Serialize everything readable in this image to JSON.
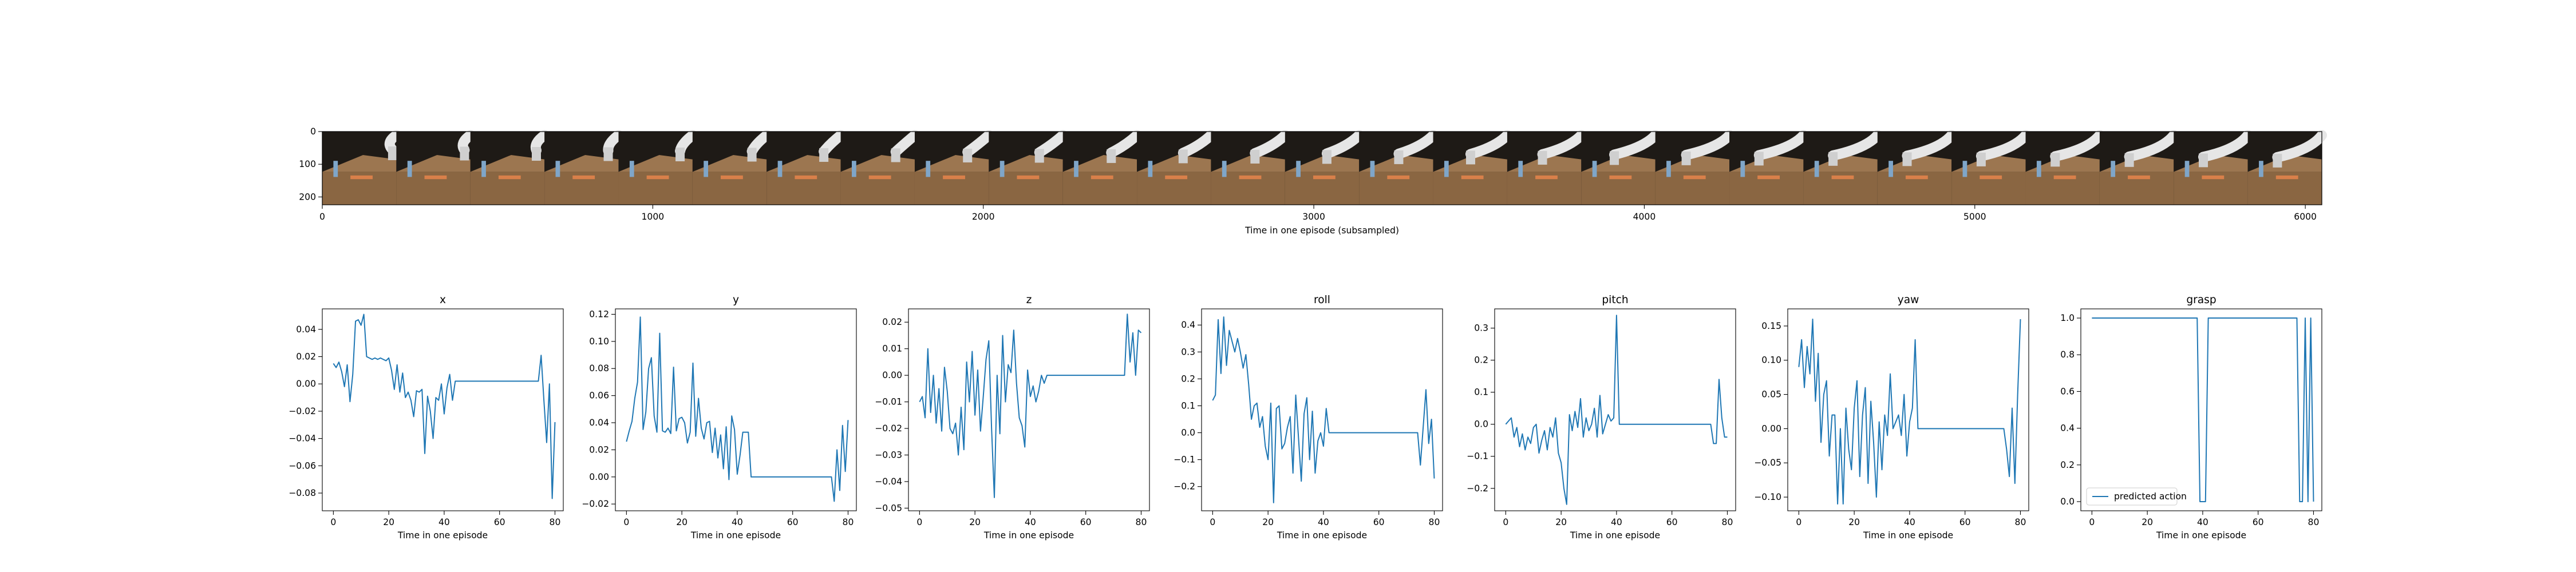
{
  "figure": {
    "filmstrip": {
      "xlabel": "Time in one episode (subsampled)",
      "x_ticks": [
        "0",
        "1000",
        "2000",
        "3000",
        "4000",
        "5000",
        "6000"
      ],
      "y_ticks": [
        "0",
        "100",
        "200"
      ],
      "frame_count": 27,
      "colors": {
        "table": "#8a6642",
        "robot": "#e6e6e6",
        "background": "#1e1a16"
      }
    }
  },
  "chart_data": [
    {
      "type": "line",
      "title": "x",
      "xlabel": "Time in one episode",
      "xlim": [
        -4,
        83
      ],
      "ylim": [
        -0.093,
        0.055
      ],
      "x_ticks": [
        0,
        20,
        40,
        60,
        80
      ],
      "y_ticks": [
        -0.08,
        -0.06,
        -0.04,
        -0.02,
        0.0,
        0.02,
        0.04
      ],
      "y_tick_labels": [
        "−0.08",
        "−0.06",
        "−0.04",
        "−0.02",
        "0.00",
        "0.02",
        "0.04"
      ],
      "line_color": "#1f77b4",
      "series": [
        {
          "values": [
            0.015,
            0.012,
            0.016,
            0.009,
            -0.002,
            0.014,
            -0.013,
            0.007,
            0.046,
            0.047,
            0.043,
            0.051,
            0.02,
            0.019,
            0.018,
            0.019,
            0.018,
            0.019,
            0.018,
            0.017,
            0.019,
            0.01,
            -0.004,
            0.014,
            -0.006,
            0.008,
            -0.01,
            -0.006,
            -0.012,
            -0.024,
            -0.005,
            -0.006,
            -0.004,
            -0.051,
            -0.009,
            -0.02,
            -0.04,
            -0.01,
            -0.012,
            0.0,
            -0.022,
            -0.003,
            0.007,
            -0.012,
            0.002,
            0.002,
            0.002,
            0.002,
            0.002,
            0.002,
            0.002,
            0.002,
            0.002,
            0.002,
            0.002,
            0.002,
            0.002,
            0.002,
            0.002,
            0.002,
            0.002,
            0.002,
            0.002,
            0.002,
            0.002,
            0.002,
            0.002,
            0.002,
            0.002,
            0.002,
            0.002,
            0.002,
            0.002,
            0.002,
            0.002,
            0.021,
            -0.012,
            -0.043,
            0.0,
            -0.084,
            -0.028
          ]
        }
      ]
    },
    {
      "type": "line",
      "title": "y",
      "xlabel": "Time in one episode",
      "xlim": [
        -4,
        83
      ],
      "ylim": [
        -0.025,
        0.124
      ],
      "x_ticks": [
        0,
        20,
        40,
        60,
        80
      ],
      "y_ticks": [
        -0.02,
        0.0,
        0.02,
        0.04,
        0.06,
        0.08,
        0.1,
        0.12
      ],
      "y_tick_labels": [
        "−0.02",
        "0.00",
        "0.02",
        "0.04",
        "0.06",
        "0.08",
        "0.10",
        "0.12"
      ],
      "line_color": "#1f77b4",
      "series": [
        {
          "values": [
            0.026,
            0.034,
            0.041,
            0.058,
            0.07,
            0.118,
            0.035,
            0.048,
            0.08,
            0.088,
            0.045,
            0.033,
            0.106,
            0.034,
            0.033,
            0.036,
            0.032,
            0.081,
            0.034,
            0.043,
            0.044,
            0.04,
            0.025,
            0.033,
            0.084,
            0.03,
            0.058,
            0.036,
            0.028,
            0.04,
            0.041,
            0.018,
            0.036,
            0.014,
            0.031,
            0.006,
            0.037,
            -0.002,
            0.045,
            0.035,
            0.002,
            0.016,
            0.033,
            0.033,
            0.033,
            0.0,
            0.0,
            0.0,
            0.0,
            0.0,
            0.0,
            0.0,
            0.0,
            0.0,
            0.0,
            0.0,
            0.0,
            0.0,
            0.0,
            0.0,
            0.0,
            0.0,
            0.0,
            0.0,
            0.0,
            0.0,
            0.0,
            0.0,
            0.0,
            0.0,
            0.0,
            0.0,
            0.0,
            0.0,
            0.0,
            -0.018,
            0.02,
            -0.01,
            0.038,
            0.004,
            0.042
          ]
        }
      ]
    },
    {
      "type": "line",
      "title": "z",
      "xlabel": "Time in one episode",
      "xlim": [
        -4,
        83
      ],
      "ylim": [
        -0.051,
        0.025
      ],
      "x_ticks": [
        0,
        20,
        40,
        60,
        80
      ],
      "y_ticks": [
        -0.05,
        -0.04,
        -0.03,
        -0.02,
        -0.01,
        0.0,
        0.01,
        0.02
      ],
      "y_tick_labels": [
        "−0.05",
        "−0.04",
        "−0.03",
        "−0.02",
        "−0.01",
        "0.00",
        "0.01",
        "0.02"
      ],
      "line_color": "#1f77b4",
      "series": [
        {
          "values": [
            -0.01,
            -0.008,
            -0.016,
            0.01,
            -0.014,
            0.0,
            -0.018,
            -0.005,
            -0.021,
            0.003,
            -0.006,
            -0.02,
            -0.022,
            -0.018,
            -0.03,
            -0.012,
            -0.028,
            0.005,
            -0.01,
            0.009,
            -0.015,
            0.002,
            -0.021,
            -0.008,
            0.006,
            0.013,
            -0.02,
            -0.046,
            0.0,
            -0.022,
            0.015,
            -0.01,
            0.004,
            0.001,
            0.017,
            -0.003,
            -0.016,
            -0.019,
            -0.027,
            0.002,
            -0.008,
            -0.004,
            -0.01,
            -0.006,
            0.0,
            -0.003,
            0.0,
            0.0,
            0.0,
            0.0,
            0.0,
            0.0,
            0.0,
            0.0,
            0.0,
            0.0,
            0.0,
            0.0,
            0.0,
            0.0,
            0.0,
            0.0,
            0.0,
            0.0,
            0.0,
            0.0,
            0.0,
            0.0,
            0.0,
            0.0,
            0.0,
            0.0,
            0.0,
            0.0,
            0.0,
            0.023,
            0.005,
            0.016,
            0.0,
            0.017,
            0.016
          ]
        }
      ]
    },
    {
      "type": "line",
      "title": "roll",
      "xlabel": "Time in one episode",
      "xlim": [
        -4,
        83
      ],
      "ylim": [
        -0.29,
        0.46
      ],
      "x_ticks": [
        0,
        20,
        40,
        60,
        80
      ],
      "y_ticks": [
        -0.2,
        -0.1,
        0.0,
        0.1,
        0.2,
        0.3,
        0.4
      ],
      "y_tick_labels": [
        "−0.2",
        "−0.1",
        "0.0",
        "0.1",
        "0.2",
        "0.3",
        "0.4"
      ],
      "line_color": "#1f77b4",
      "series": [
        {
          "values": [
            0.12,
            0.14,
            0.42,
            0.22,
            0.43,
            0.25,
            0.38,
            0.34,
            0.3,
            0.35,
            0.3,
            0.24,
            0.29,
            0.18,
            0.05,
            0.1,
            0.11,
            0.02,
            0.06,
            -0.05,
            -0.1,
            0.11,
            -0.26,
            0.09,
            0.1,
            -0.06,
            -0.04,
            0.02,
            0.06,
            -0.15,
            0.14,
            -0.02,
            -0.18,
            0.07,
            0.13,
            -0.1,
            0.08,
            -0.15,
            -0.03,
            0.0,
            -0.05,
            0.09,
            0.0,
            0.0,
            0.0,
            0.0,
            0.0,
            0.0,
            0.0,
            0.0,
            0.0,
            0.0,
            0.0,
            0.0,
            0.0,
            0.0,
            0.0,
            0.0,
            0.0,
            0.0,
            0.0,
            0.0,
            0.0,
            0.0,
            0.0,
            0.0,
            0.0,
            0.0,
            0.0,
            0.0,
            0.0,
            0.0,
            0.0,
            0.0,
            0.0,
            -0.12,
            0.02,
            0.16,
            -0.04,
            0.05,
            -0.17
          ]
        }
      ]
    },
    {
      "type": "line",
      "title": "pitch",
      "xlabel": "Time in one episode",
      "xlim": [
        -4,
        83
      ],
      "ylim": [
        -0.27,
        0.36
      ],
      "x_ticks": [
        0,
        20,
        40,
        60,
        80
      ],
      "y_ticks": [
        -0.2,
        -0.1,
        0.0,
        0.1,
        0.2,
        0.3
      ],
      "y_tick_labels": [
        "−0.2",
        "−0.1",
        "0.0",
        "0.1",
        "0.2",
        "0.3"
      ],
      "line_color": "#1f77b4",
      "series": [
        {
          "values": [
            0.0,
            0.01,
            0.02,
            -0.04,
            -0.01,
            -0.07,
            -0.03,
            -0.08,
            -0.04,
            -0.06,
            -0.01,
            0.0,
            -0.09,
            -0.05,
            -0.02,
            -0.08,
            -0.01,
            -0.04,
            0.02,
            -0.09,
            -0.12,
            -0.2,
            -0.25,
            0.03,
            -0.02,
            0.04,
            -0.01,
            0.08,
            -0.04,
            0.02,
            -0.02,
            0.0,
            0.05,
            -0.04,
            0.09,
            -0.03,
            0.0,
            0.03,
            0.01,
            0.02,
            0.34,
            0.0,
            0.0,
            0.0,
            0.0,
            0.0,
            0.0,
            0.0,
            0.0,
            0.0,
            0.0,
            0.0,
            0.0,
            0.0,
            0.0,
            0.0,
            0.0,
            0.0,
            0.0,
            0.0,
            0.0,
            0.0,
            0.0,
            0.0,
            0.0,
            0.0,
            0.0,
            0.0,
            0.0,
            0.0,
            0.0,
            0.0,
            0.0,
            0.0,
            0.0,
            -0.06,
            -0.06,
            0.14,
            0.02,
            -0.04,
            -0.04
          ]
        }
      ]
    },
    {
      "type": "line",
      "title": "yaw",
      "xlabel": "Time in one episode",
      "xlim": [
        -4,
        83
      ],
      "ylim": [
        -0.12,
        0.175
      ],
      "x_ticks": [
        0,
        20,
        40,
        60,
        80
      ],
      "y_ticks": [
        -0.1,
        -0.05,
        0.0,
        0.05,
        0.1,
        0.15
      ],
      "y_tick_labels": [
        "−0.10",
        "−0.05",
        "0.00",
        "0.05",
        "0.10",
        "0.15"
      ],
      "line_color": "#1f77b4",
      "series": [
        {
          "values": [
            0.09,
            0.13,
            0.06,
            0.12,
            0.08,
            0.16,
            0.04,
            0.11,
            -0.02,
            0.05,
            0.07,
            -0.04,
            0.02,
            0.02,
            -0.11,
            0.0,
            -0.11,
            0.03,
            -0.03,
            -0.06,
            0.03,
            0.07,
            -0.07,
            0.02,
            0.06,
            -0.08,
            0.04,
            -0.02,
            -0.1,
            0.01,
            -0.06,
            0.02,
            -0.01,
            0.08,
            0.0,
            0.01,
            0.02,
            -0.01,
            0.05,
            -0.04,
            0.01,
            0.03,
            0.13,
            0.0,
            0.0,
            0.0,
            0.0,
            0.0,
            0.0,
            0.0,
            0.0,
            0.0,
            0.0,
            0.0,
            0.0,
            0.0,
            0.0,
            0.0,
            0.0,
            0.0,
            0.0,
            0.0,
            0.0,
            0.0,
            0.0,
            0.0,
            0.0,
            0.0,
            0.0,
            0.0,
            0.0,
            0.0,
            0.0,
            0.0,
            0.0,
            -0.03,
            -0.07,
            0.03,
            -0.08,
            0.05,
            0.16
          ]
        }
      ]
    },
    {
      "type": "line",
      "title": "grasp",
      "xlabel": "Time in one episode",
      "xlim": [
        -4,
        83
      ],
      "ylim": [
        -0.05,
        1.05
      ],
      "x_ticks": [
        0,
        20,
        40,
        60,
        80
      ],
      "y_ticks": [
        0.0,
        0.2,
        0.4,
        0.6,
        0.8,
        1.0
      ],
      "y_tick_labels": [
        "0.0",
        "0.2",
        "0.4",
        "0.6",
        "0.8",
        "1.0"
      ],
      "line_color": "#1f77b4",
      "legend": {
        "entries": [
          "predicted action"
        ],
        "placement": "lower-left"
      },
      "series": [
        {
          "name": "predicted action",
          "values": [
            1,
            1,
            1,
            1,
            1,
            1,
            1,
            1,
            1,
            1,
            1,
            1,
            1,
            1,
            1,
            1,
            1,
            1,
            1,
            1,
            1,
            1,
            1,
            1,
            1,
            1,
            1,
            1,
            1,
            1,
            1,
            1,
            1,
            1,
            1,
            1,
            1,
            1,
            1,
            0,
            0,
            0,
            1,
            1,
            1,
            1,
            1,
            1,
            1,
            1,
            1,
            1,
            1,
            1,
            1,
            1,
            1,
            1,
            1,
            1,
            1,
            1,
            1,
            1,
            1,
            1,
            1,
            1,
            1,
            1,
            1,
            1,
            1,
            1,
            1,
            0,
            0,
            1,
            0,
            1,
            0
          ]
        }
      ]
    }
  ]
}
